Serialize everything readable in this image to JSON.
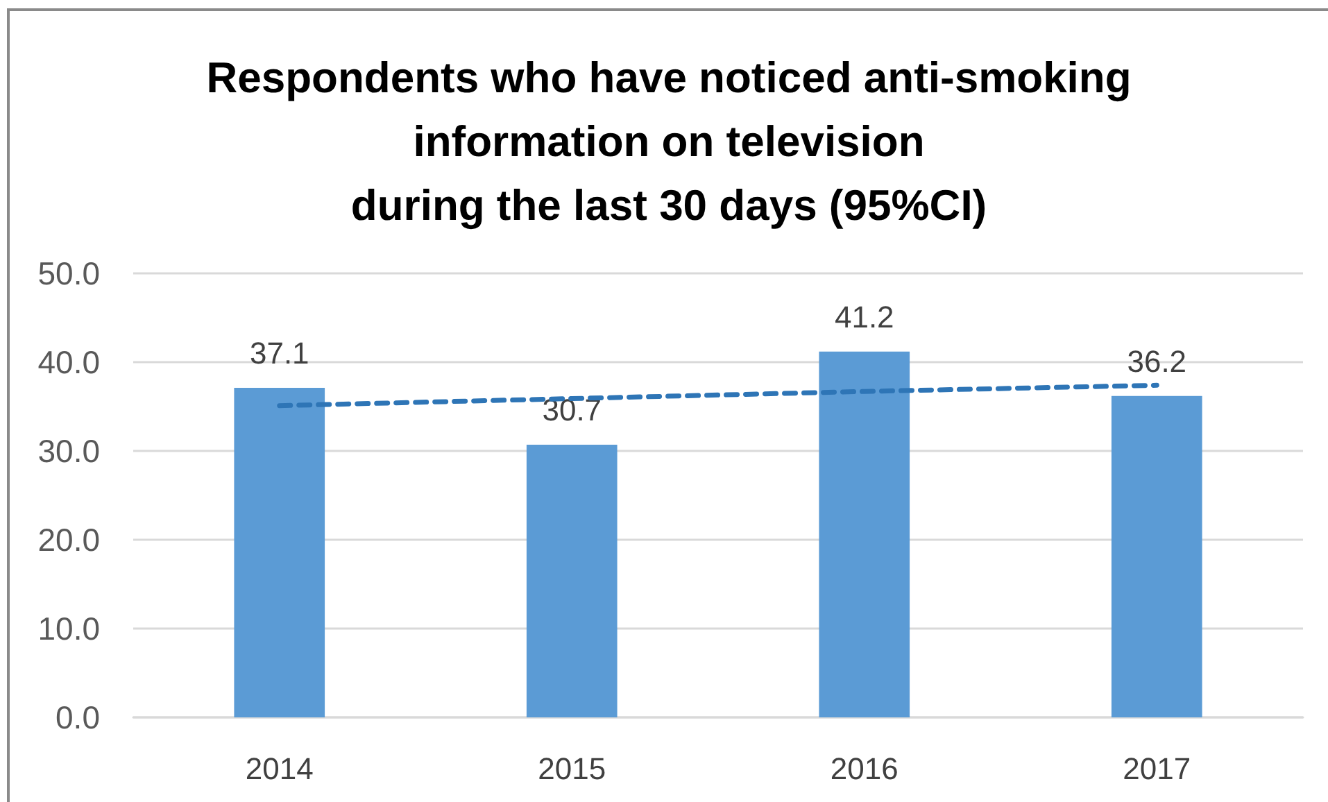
{
  "chart_data": {
    "type": "bar",
    "title": "Respondents who have noticed anti-smoking\ninformation on television\nduring the last 30 days (95%CI)",
    "categories": [
      "2014",
      "2015",
      "2016",
      "2017"
    ],
    "series": [
      {
        "color": "#5b9bd5",
        "values": [
          37.1,
          30.7,
          41.2,
          36.2
        ],
        "value_labels": [
          "37.1",
          "30.7",
          "41.2",
          "36.2"
        ]
      },
      {
        "type": "line",
        "color": "#2e75b6",
        "values": [
          35.1,
          35.9,
          36.7,
          37.4
        ],
        "line_style": "dashed",
        "marker": "none"
      }
    ],
    "ylim": [
      0,
      50
    ],
    "yticks": [
      {
        "value": 0,
        "label": "0.0"
      },
      {
        "value": 10,
        "label": "10.0"
      },
      {
        "value": 20,
        "label": "20.0"
      },
      {
        "value": 30,
        "label": "30.0"
      },
      {
        "value": 40,
        "label": "40.0"
      },
      {
        "value": 50,
        "label": "50.0"
      }
    ],
    "grid": "y"
  }
}
